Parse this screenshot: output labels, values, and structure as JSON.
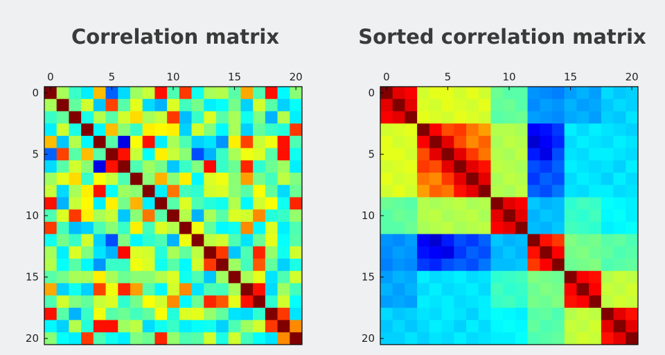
{
  "chart_data": [
    {
      "type": "heatmap",
      "title": "Correlation matrix",
      "x_ticks": [
        0,
        5,
        10,
        15,
        20
      ],
      "y_ticks": [
        0,
        5,
        10,
        15,
        20
      ],
      "size": 21,
      "xlim": [
        -0.5,
        20.5
      ],
      "ylim": [
        -0.5,
        20.5
      ],
      "colormap": "jet",
      "value_range": [
        0,
        1
      ],
      "x_axis_position": "top",
      "matrix": [
        [
          1,
          0.54,
          0.43,
          0.36,
          0.69,
          0.22,
          0.34,
          0.53,
          0.57,
          0.86,
          0.45,
          0.82,
          0.39,
          0.54,
          0.55,
          0.46,
          0.71,
          0.45,
          0.86,
          0.37,
          0.51
        ],
        [
          0.54,
          1,
          0.47,
          0.58,
          0.32,
          0.81,
          0.46,
          0.6,
          0.34,
          0.3,
          0.59,
          0.44,
          0.49,
          0.36,
          0.38,
          0.49,
          0.33,
          0.58,
          0.46,
          0.33,
          0.38
        ],
        [
          0.43,
          0.47,
          1,
          0.4,
          0.55,
          0.46,
          0.58,
          0.66,
          0.54,
          0.57,
          0.82,
          0.31,
          0.43,
          0.59,
          0.46,
          0.54,
          0.39,
          0.5,
          0.3,
          0.55,
          0.36
        ],
        [
          0.36,
          0.58,
          0.4,
          1,
          0.37,
          0.69,
          0.51,
          0.43,
          0.64,
          0.63,
          0.64,
          0.33,
          0.58,
          0.5,
          0.37,
          0.54,
          0.33,
          0.47,
          0.43,
          0.41,
          0.82
        ],
        [
          0.69,
          0.32,
          0.55,
          0.37,
          1,
          0.46,
          0.1,
          0.62,
          0.86,
          0.36,
          0.54,
          0.45,
          0.33,
          0.35,
          0.27,
          0.64,
          0.81,
          0.57,
          0.61,
          0.86,
          0.45
        ],
        [
          0.22,
          0.81,
          0.46,
          0.69,
          0.46,
          1,
          0.86,
          0.57,
          0.38,
          0.64,
          0.57,
          0.51,
          0.2,
          0.3,
          0.43,
          0.54,
          0.61,
          0.59,
          0.46,
          0.86,
          0.39
        ],
        [
          0.34,
          0.46,
          0.58,
          0.51,
          0.1,
          0.86,
          1,
          0.45,
          0.53,
          0.49,
          0.32,
          0.43,
          0.5,
          0.87,
          0.43,
          0.48,
          0.84,
          0.42,
          0.48,
          0.53,
          0.36
        ],
        [
          0.53,
          0.6,
          0.66,
          0.43,
          0.62,
          0.57,
          0.45,
          1,
          0.51,
          0.7,
          0.51,
          0.64,
          0.37,
          0.59,
          0.61,
          0.51,
          0.72,
          0.49,
          0.44,
          0.56,
          0.5
        ],
        [
          0.57,
          0.34,
          0.54,
          0.64,
          0.86,
          0.38,
          0.53,
          0.51,
          1,
          0.36,
          0.76,
          0.44,
          0.42,
          0.58,
          0.59,
          0.51,
          0.46,
          0.62,
          0.47,
          0.34,
          0.48
        ],
        [
          0.86,
          0.3,
          0.57,
          0.63,
          0.36,
          0.64,
          0.49,
          0.7,
          0.36,
          1,
          0.46,
          0.59,
          0.45,
          0.41,
          0.39,
          0.55,
          0.37,
          0.58,
          0.62,
          0.39,
          0.84
        ],
        [
          0.45,
          0.59,
          0.82,
          0.64,
          0.54,
          0.57,
          0.32,
          0.51,
          0.76,
          0.46,
          1,
          0.55,
          0.3,
          0.54,
          0.46,
          0.59,
          0.58,
          0.74,
          0.41,
          0.43,
          0.52
        ],
        [
          0.82,
          0.44,
          0.31,
          0.33,
          0.45,
          0.51,
          0.43,
          0.64,
          0.44,
          0.59,
          0.55,
          1,
          0.61,
          0.47,
          0.37,
          0.39,
          0.74,
          0.37,
          0.59,
          0.36,
          0.45
        ],
        [
          0.39,
          0.49,
          0.43,
          0.58,
          0.33,
          0.2,
          0.5,
          0.37,
          0.42,
          0.45,
          0.3,
          0.61,
          1,
          0.56,
          0.58,
          0.45,
          0.35,
          0.48,
          0.6,
          0.38,
          0.46
        ],
        [
          0.54,
          0.36,
          0.59,
          0.5,
          0.35,
          0.3,
          0.87,
          0.59,
          0.58,
          0.41,
          0.54,
          0.47,
          0.56,
          1,
          0.82,
          0.32,
          0.45,
          0.84,
          0.52,
          0.39,
          0.58
        ],
        [
          0.55,
          0.38,
          0.46,
          0.37,
          0.27,
          0.43,
          0.43,
          0.61,
          0.59,
          0.39,
          0.46,
          0.37,
          0.58,
          0.82,
          1,
          0.53,
          0.44,
          0.79,
          0.47,
          0.33,
          0.4
        ],
        [
          0.46,
          0.49,
          0.54,
          0.54,
          0.64,
          0.54,
          0.48,
          0.51,
          0.51,
          0.55,
          0.59,
          0.39,
          0.45,
          0.32,
          0.53,
          1,
          0.54,
          0.6,
          0.35,
          0.45,
          0.58
        ],
        [
          0.71,
          0.33,
          0.39,
          0.33,
          0.81,
          0.61,
          0.84,
          0.72,
          0.46,
          0.37,
          0.58,
          0.74,
          0.35,
          0.45,
          0.44,
          0.54,
          1,
          0.86,
          0.34,
          0.53,
          0.44
        ],
        [
          0.45,
          0.58,
          0.5,
          0.47,
          0.57,
          0.59,
          0.42,
          0.49,
          0.62,
          0.58,
          0.74,
          0.37,
          0.48,
          0.84,
          0.79,
          0.6,
          0.86,
          1,
          0.42,
          0.58,
          0.38
        ],
        [
          0.86,
          0.46,
          0.3,
          0.43,
          0.61,
          0.46,
          0.48,
          0.44,
          0.47,
          0.62,
          0.41,
          0.59,
          0.6,
          0.52,
          0.47,
          0.35,
          0.34,
          0.42,
          1,
          0.82,
          0.35
        ],
        [
          0.37,
          0.33,
          0.55,
          0.41,
          0.86,
          0.86,
          0.53,
          0.56,
          0.34,
          0.39,
          0.43,
          0.36,
          0.38,
          0.39,
          0.33,
          0.45,
          0.53,
          0.58,
          0.82,
          1,
          0.74
        ],
        [
          0.51,
          0.38,
          0.36,
          0.82,
          0.45,
          0.39,
          0.36,
          0.5,
          0.48,
          0.84,
          0.52,
          0.45,
          0.46,
          0.58,
          0.4,
          0.58,
          0.44,
          0.38,
          0.35,
          0.74,
          1
        ]
      ]
    },
    {
      "type": "heatmap",
      "title": "Sorted correlation matrix",
      "x_ticks": [
        0,
        5,
        10,
        15,
        20
      ],
      "y_ticks": [
        0,
        5,
        10,
        15,
        20
      ],
      "size": 21,
      "xlim": [
        -0.5,
        20.5
      ],
      "ylim": [
        -0.5,
        20.5
      ],
      "colormap": "jet",
      "value_range": [
        0,
        1
      ],
      "x_axis_position": "top",
      "matrix": [
        [
          1,
          0.9,
          0.88,
          0.58,
          0.6,
          0.6,
          0.58,
          0.6,
          0.58,
          0.48,
          0.46,
          0.46,
          0.27,
          0.26,
          0.25,
          0.28,
          0.3,
          0.28,
          0.34,
          0.32,
          0.33
        ],
        [
          0.9,
          1,
          0.9,
          0.59,
          0.58,
          0.6,
          0.59,
          0.58,
          0.6,
          0.47,
          0.48,
          0.46,
          0.26,
          0.28,
          0.27,
          0.3,
          0.28,
          0.29,
          0.32,
          0.34,
          0.33
        ],
        [
          0.88,
          0.9,
          1,
          0.6,
          0.59,
          0.58,
          0.6,
          0.59,
          0.58,
          0.46,
          0.47,
          0.48,
          0.28,
          0.27,
          0.26,
          0.29,
          0.3,
          0.28,
          0.33,
          0.32,
          0.35
        ],
        [
          0.58,
          0.59,
          0.6,
          1,
          0.88,
          0.8,
          0.82,
          0.76,
          0.72,
          0.55,
          0.55,
          0.54,
          0.12,
          0.14,
          0.18,
          0.36,
          0.34,
          0.36,
          0.35,
          0.34,
          0.33
        ],
        [
          0.6,
          0.58,
          0.59,
          0.88,
          1,
          0.9,
          0.8,
          0.74,
          0.78,
          0.54,
          0.56,
          0.55,
          0.08,
          0.12,
          0.16,
          0.34,
          0.36,
          0.35,
          0.34,
          0.36,
          0.35
        ],
        [
          0.6,
          0.6,
          0.58,
          0.8,
          0.9,
          1,
          0.9,
          0.82,
          0.76,
          0.55,
          0.54,
          0.56,
          0.15,
          0.1,
          0.2,
          0.35,
          0.34,
          0.36,
          0.36,
          0.35,
          0.34
        ],
        [
          0.58,
          0.59,
          0.6,
          0.82,
          0.8,
          0.9,
          1,
          0.9,
          0.86,
          0.56,
          0.55,
          0.54,
          0.2,
          0.18,
          0.22,
          0.36,
          0.35,
          0.34,
          0.35,
          0.33,
          0.36
        ],
        [
          0.6,
          0.58,
          0.59,
          0.76,
          0.74,
          0.82,
          0.9,
          1,
          0.9,
          0.54,
          0.56,
          0.55,
          0.18,
          0.22,
          0.2,
          0.34,
          0.36,
          0.35,
          0.33,
          0.36,
          0.34
        ],
        [
          0.58,
          0.6,
          0.58,
          0.72,
          0.78,
          0.76,
          0.86,
          0.9,
          1,
          0.55,
          0.54,
          0.56,
          0.22,
          0.2,
          0.24,
          0.35,
          0.34,
          0.36,
          0.36,
          0.34,
          0.35
        ],
        [
          0.48,
          0.47,
          0.46,
          0.55,
          0.54,
          0.55,
          0.56,
          0.54,
          0.55,
          1,
          0.9,
          0.88,
          0.32,
          0.3,
          0.31,
          0.42,
          0.44,
          0.43,
          0.38,
          0.37,
          0.36
        ],
        [
          0.46,
          0.48,
          0.47,
          0.55,
          0.56,
          0.54,
          0.55,
          0.56,
          0.54,
          0.9,
          1,
          0.9,
          0.3,
          0.32,
          0.31,
          0.43,
          0.42,
          0.44,
          0.37,
          0.38,
          0.36
        ],
        [
          0.46,
          0.46,
          0.48,
          0.54,
          0.55,
          0.56,
          0.54,
          0.55,
          0.56,
          0.88,
          0.9,
          1,
          0.31,
          0.3,
          0.32,
          0.44,
          0.43,
          0.42,
          0.36,
          0.37,
          0.38
        ],
        [
          0.27,
          0.26,
          0.28,
          0.12,
          0.08,
          0.15,
          0.2,
          0.18,
          0.22,
          0.32,
          0.3,
          0.31,
          1,
          0.86,
          0.82,
          0.5,
          0.48,
          0.49,
          0.46,
          0.47,
          0.45
        ],
        [
          0.26,
          0.28,
          0.27,
          0.14,
          0.12,
          0.1,
          0.18,
          0.22,
          0.2,
          0.3,
          0.32,
          0.3,
          0.86,
          1,
          0.88,
          0.49,
          0.5,
          0.48,
          0.47,
          0.45,
          0.46
        ],
        [
          0.25,
          0.27,
          0.26,
          0.18,
          0.16,
          0.2,
          0.22,
          0.2,
          0.24,
          0.31,
          0.31,
          0.32,
          0.82,
          0.88,
          1,
          0.48,
          0.49,
          0.5,
          0.45,
          0.46,
          0.47
        ],
        [
          0.28,
          0.3,
          0.29,
          0.36,
          0.34,
          0.35,
          0.36,
          0.34,
          0.35,
          0.42,
          0.43,
          0.44,
          0.5,
          0.49,
          0.48,
          1,
          0.88,
          0.86,
          0.55,
          0.57,
          0.56
        ],
        [
          0.3,
          0.28,
          0.3,
          0.34,
          0.36,
          0.34,
          0.35,
          0.36,
          0.34,
          0.44,
          0.42,
          0.43,
          0.48,
          0.5,
          0.49,
          0.88,
          1,
          0.88,
          0.57,
          0.56,
          0.58
        ],
        [
          0.28,
          0.29,
          0.28,
          0.36,
          0.35,
          0.36,
          0.34,
          0.35,
          0.36,
          0.43,
          0.44,
          0.42,
          0.49,
          0.48,
          0.5,
          0.86,
          0.88,
          1,
          0.56,
          0.58,
          0.57
        ],
        [
          0.34,
          0.32,
          0.33,
          0.35,
          0.34,
          0.36,
          0.35,
          0.33,
          0.36,
          0.38,
          0.37,
          0.36,
          0.46,
          0.47,
          0.45,
          0.55,
          0.57,
          0.56,
          1,
          0.9,
          0.86
        ],
        [
          0.32,
          0.34,
          0.32,
          0.34,
          0.36,
          0.35,
          0.33,
          0.36,
          0.34,
          0.37,
          0.38,
          0.37,
          0.47,
          0.45,
          0.46,
          0.57,
          0.56,
          0.58,
          0.9,
          1,
          0.9
        ],
        [
          0.33,
          0.33,
          0.35,
          0.33,
          0.35,
          0.34,
          0.36,
          0.34,
          0.35,
          0.36,
          0.36,
          0.38,
          0.45,
          0.46,
          0.47,
          0.56,
          0.58,
          0.57,
          0.86,
          0.9,
          1
        ]
      ]
    }
  ]
}
